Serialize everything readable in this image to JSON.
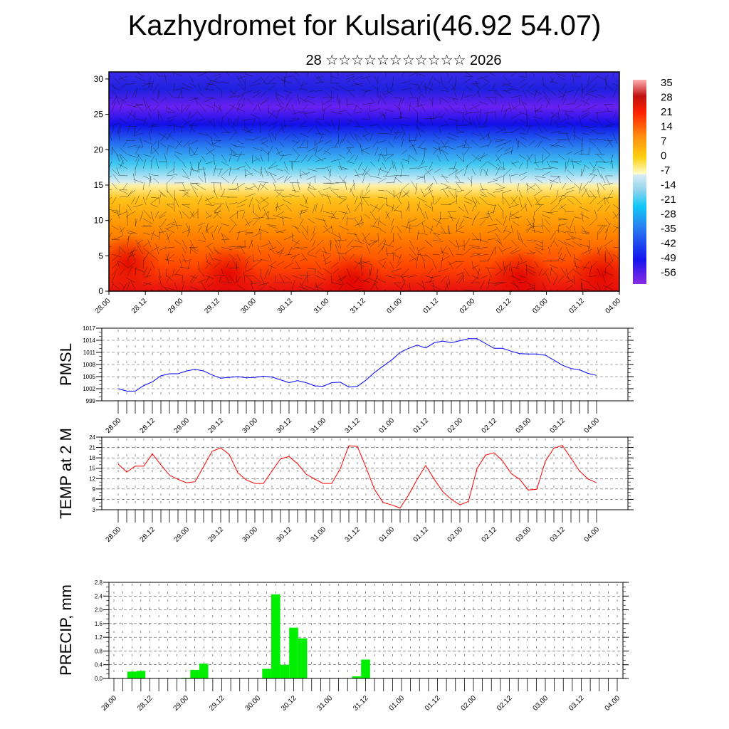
{
  "title": "Kazhydromet for Kulsari(46.92 54.07)",
  "subtitle": "28 ☆☆☆☆☆☆☆☆☆☆☆ 2026",
  "x_labels": [
    "28.00",
    "28.12",
    "29.00",
    "29.12",
    "30.00",
    "30.12",
    "31.00",
    "31.12",
    "01.00",
    "01.12",
    "02.00",
    "02.12",
    "03.00",
    "03.12",
    "04.00"
  ],
  "colors": {
    "pmsl": "#0000ff",
    "temp": "#ff0000",
    "precip": "#00ee00"
  },
  "chart_data": [
    {
      "type": "heatmap",
      "title": "",
      "ylabel": "",
      "yticks": [
        0,
        5,
        10,
        15,
        20,
        25,
        30
      ],
      "ylim": [
        0,
        31
      ],
      "colorbar": [
        "35",
        "28",
        "21",
        "14",
        "7",
        "0",
        "-7",
        "-14",
        "-21",
        "-28",
        "-35",
        "-42",
        "-49",
        "-56"
      ]
    },
    {
      "type": "line",
      "ylabel": "PMSL",
      "ylim": [
        999,
        1017
      ],
      "yticks": [
        999,
        1002,
        1005,
        1008,
        1011,
        1014,
        1017
      ],
      "x_step_hours": 3,
      "values": [
        1002.0,
        1001.4,
        1001.4,
        1002.8,
        1003.7,
        1005.2,
        1005.7,
        1005.7,
        1006.4,
        1006.8,
        1006.4,
        1005.4,
        1004.6,
        1004.8,
        1005.0,
        1004.7,
        1004.8,
        1005.1,
        1004.9,
        1004.2,
        1003.5,
        1004.0,
        1003.5,
        1002.7,
        1002.6,
        1003.5,
        1003.6,
        1002.4,
        1002.6,
        1004.1,
        1006.0,
        1007.6,
        1009.1,
        1011.0,
        1012.0,
        1012.8,
        1012.1,
        1013.4,
        1013.8,
        1013.4,
        1013.9,
        1014.4,
        1014.4,
        1013.2,
        1012.0,
        1012.0,
        1011.3,
        1010.7,
        1010.6,
        1010.6,
        1010.3,
        1009.1,
        1007.8,
        1007.0,
        1006.7,
        1005.8,
        1005.3
      ]
    },
    {
      "type": "line",
      "ylabel": "TEMP at 2 M",
      "ylim": [
        3,
        24
      ],
      "yticks": [
        3,
        6,
        9,
        12,
        15,
        18,
        21,
        24
      ],
      "x_step_hours": 3,
      "values": [
        16.2,
        13.9,
        15.6,
        15.6,
        19.2,
        16.0,
        13.0,
        11.8,
        10.8,
        11.1,
        15.5,
        19.9,
        20.9,
        19.0,
        13.7,
        11.6,
        10.6,
        10.6,
        14.2,
        17.7,
        18.4,
        16.3,
        13.3,
        11.9,
        10.6,
        10.6,
        14.9,
        21.5,
        21.3,
        15.3,
        8.9,
        5.1,
        4.4,
        3.5,
        7.3,
        11.8,
        15.8,
        11.8,
        8.2,
        6.0,
        4.4,
        5.4,
        14.9,
        18.8,
        19.5,
        17.1,
        13.5,
        11.8,
        8.7,
        8.9,
        17.0,
        20.8,
        21.6,
        17.9,
        14.2,
        11.9,
        10.8
      ]
    },
    {
      "type": "bar",
      "ylabel": "PRECIP, mm",
      "ylim": [
        0,
        2.8
      ],
      "yticks": [
        "0.0",
        "0.4",
        "0.8",
        "1.2",
        "1.6",
        "2.0",
        "2.4",
        "2.8"
      ],
      "x_step_hours": 3,
      "values": [
        0,
        0,
        0.2,
        0.22,
        0,
        0,
        0,
        0,
        0.02,
        0.25,
        0.43,
        0,
        0,
        0,
        0,
        0,
        0,
        0.28,
        2.45,
        0.4,
        1.48,
        1.17,
        0,
        0,
        0,
        0,
        0,
        0.06,
        0.55,
        0,
        0,
        0,
        0,
        0.01,
        0,
        0,
        0.01,
        0,
        0,
        0,
        0,
        0,
        0,
        0,
        0,
        0,
        0,
        0,
        0,
        0,
        0,
        0,
        0,
        0,
        0,
        0,
        0
      ]
    }
  ]
}
